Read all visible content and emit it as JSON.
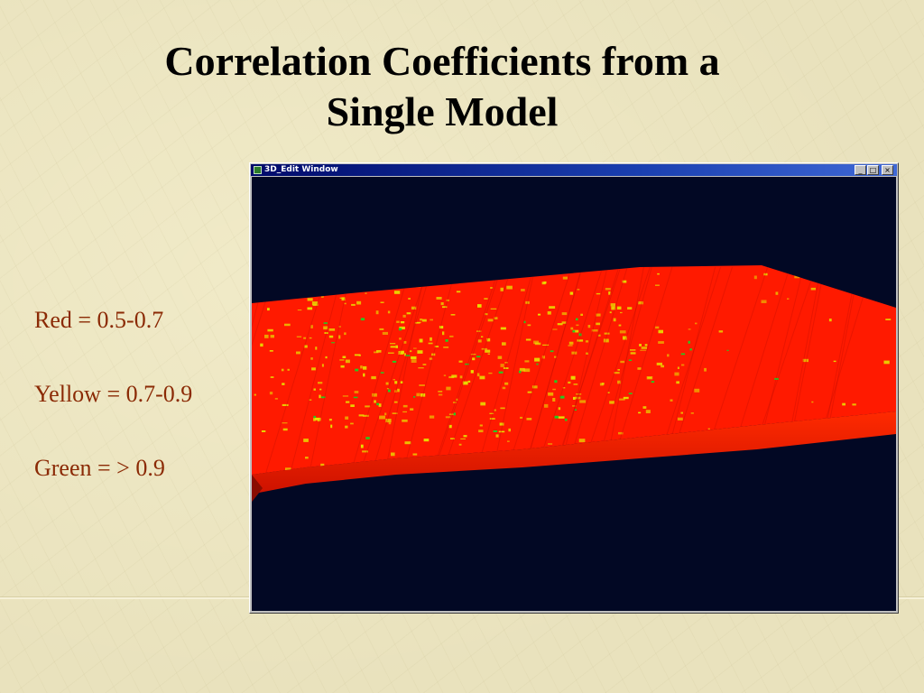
{
  "slide": {
    "title_line1": "Correlation Coefficients from a",
    "title_line2": "Single Model"
  },
  "legend": {
    "items": [
      {
        "label": "Red = 0.5-0.7",
        "color": "#ff1a00"
      },
      {
        "label": "Yellow = 0.7-0.9",
        "color": "#e8e000"
      },
      {
        "label": "Green = > 0.9",
        "color": "#22cc22"
      }
    ]
  },
  "window": {
    "title": "3D_Edit Window",
    "icon": "app-icon",
    "buttons": {
      "minimize": "_",
      "maximize": "□",
      "close": "×"
    },
    "background_color": "#020824"
  },
  "colors": {
    "text_legend": "#8b2a05",
    "title": "#000000",
    "surface_red": "#ff1a00",
    "surface_yellow": "#e8e000",
    "surface_green": "#22cc22"
  }
}
